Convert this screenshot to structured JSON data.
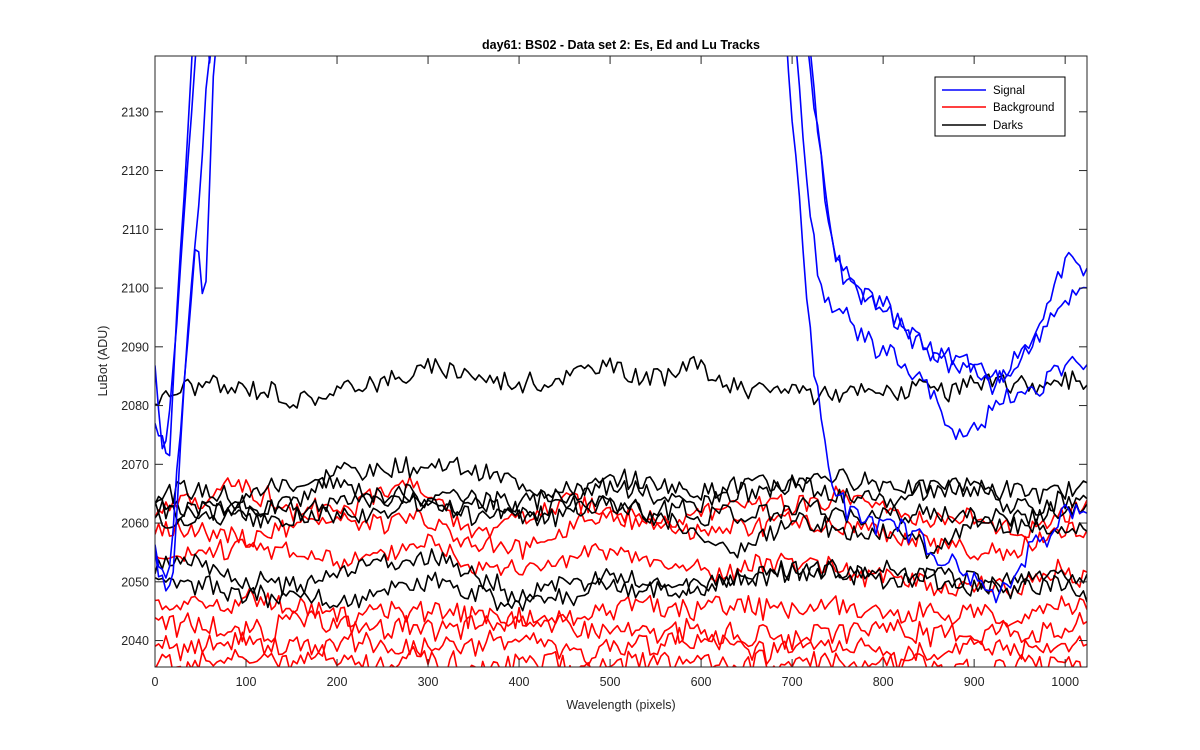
{
  "chart_data": {
    "type": "line",
    "title": "day61: BS02 - Data set 2: Es, Ed and Lu Tracks",
    "xlabel": "Wavelength (pixels)",
    "ylabel": "LuBot (ADU)",
    "xlim": [
      0,
      1024
    ],
    "ylim": [
      2035.5,
      2139.5
    ],
    "xticks": [
      0,
      100,
      200,
      300,
      400,
      500,
      600,
      700,
      800,
      900,
      1000
    ],
    "yticks": [
      2040,
      2050,
      2060,
      2070,
      2080,
      2090,
      2100,
      2110,
      2120,
      2130
    ],
    "grid": false,
    "legend_position": "top-right",
    "legend": [
      {
        "label": "Signal",
        "color": "#0000ff"
      },
      {
        "label": "Background",
        "color": "#ff0000"
      },
      {
        "label": "Darks",
        "color": "#000000"
      }
    ],
    "sampling_step_pixels": 4,
    "series": [
      {
        "group": "Signal",
        "color": "#0000ff",
        "seed": 11,
        "noise": 1.6,
        "knots": [
          [
            0,
            2087
          ],
          [
            10,
            2070
          ],
          [
            20,
            2085
          ],
          [
            35,
            2120
          ],
          [
            50,
            2150
          ],
          [
            60,
            2140
          ],
          [
            70,
            2150
          ],
          [
            710,
            2150
          ],
          [
            720,
            2140
          ],
          [
            740,
            2110
          ],
          [
            760,
            2100
          ],
          [
            800,
            2096
          ],
          [
            850,
            2090
          ],
          [
            880,
            2087
          ],
          [
            920,
            2084
          ],
          [
            950,
            2088
          ],
          [
            980,
            2094
          ],
          [
            1000,
            2097
          ],
          [
            1024,
            2099
          ]
        ]
      },
      {
        "group": "Signal",
        "color": "#0000ff",
        "seed": 12,
        "noise": 1.6,
        "knots": [
          [
            0,
            2078
          ],
          [
            15,
            2070
          ],
          [
            30,
            2110
          ],
          [
            45,
            2150
          ],
          [
            60,
            2150
          ],
          [
            710,
            2150
          ],
          [
            725,
            2130
          ],
          [
            745,
            2105
          ],
          [
            780,
            2098
          ],
          [
            830,
            2092
          ],
          [
            880,
            2088
          ],
          [
            930,
            2085
          ],
          [
            960,
            2090
          ],
          [
            990,
            2100
          ],
          [
            1000,
            2104
          ],
          [
            1024,
            2102
          ]
        ]
      },
      {
        "group": "Signal",
        "color": "#0000ff",
        "seed": 13,
        "noise": 1.6,
        "knots": [
          [
            0,
            2055
          ],
          [
            15,
            2050
          ],
          [
            30,
            2080
          ],
          [
            45,
            2110
          ],
          [
            55,
            2095
          ],
          [
            65,
            2140
          ],
          [
            75,
            2150
          ],
          [
            700,
            2150
          ],
          [
            712,
            2125
          ],
          [
            730,
            2100
          ],
          [
            760,
            2095
          ],
          [
            800,
            2090
          ],
          [
            850,
            2082
          ],
          [
            880,
            2075
          ],
          [
            910,
            2076
          ],
          [
            940,
            2080
          ],
          [
            970,
            2083
          ],
          [
            1000,
            2085
          ],
          [
            1024,
            2088
          ]
        ]
      },
      {
        "group": "Signal",
        "color": "#0000ff",
        "seed": 14,
        "noise": 1.8,
        "knots": [
          [
            0,
            2055
          ],
          [
            10,
            2048
          ],
          [
            20,
            2050
          ],
          [
            35,
            2090
          ],
          [
            50,
            2120
          ],
          [
            65,
            2150
          ],
          [
            690,
            2150
          ],
          [
            700,
            2130
          ],
          [
            710,
            2110
          ],
          [
            725,
            2085
          ],
          [
            740,
            2070
          ],
          [
            760,
            2062
          ],
          [
            800,
            2060
          ],
          [
            850,
            2056
          ],
          [
            890,
            2050
          ],
          [
            930,
            2047
          ],
          [
            960,
            2055
          ],
          [
            1000,
            2062
          ],
          [
            1024,
            2060
          ]
        ]
      },
      {
        "group": "Background",
        "color": "#ff0000",
        "seed": 21,
        "noise": 1.6,
        "knots": [
          [
            0,
            2062
          ],
          [
            100,
            2066
          ],
          [
            200,
            2062
          ],
          [
            280,
            2068
          ],
          [
            350,
            2058
          ],
          [
            450,
            2064
          ],
          [
            550,
            2060
          ],
          [
            650,
            2063
          ],
          [
            750,
            2064
          ],
          [
            850,
            2061
          ],
          [
            950,
            2059
          ],
          [
            1024,
            2062
          ]
        ]
      },
      {
        "group": "Background",
        "color": "#ff0000",
        "seed": 22,
        "noise": 1.6,
        "knots": [
          [
            0,
            2060
          ],
          [
            100,
            2058
          ],
          [
            200,
            2061
          ],
          [
            300,
            2060
          ],
          [
            400,
            2055
          ],
          [
            500,
            2062
          ],
          [
            600,
            2058
          ],
          [
            700,
            2060
          ],
          [
            800,
            2058
          ],
          [
            900,
            2055
          ],
          [
            1000,
            2057
          ],
          [
            1024,
            2058
          ]
        ]
      },
      {
        "group": "Background",
        "color": "#ff0000",
        "seed": 23,
        "noise": 1.6,
        "knots": [
          [
            0,
            2053
          ],
          [
            100,
            2056
          ],
          [
            200,
            2053
          ],
          [
            300,
            2057
          ],
          [
            400,
            2052
          ],
          [
            500,
            2055
          ],
          [
            600,
            2052
          ],
          [
            700,
            2054
          ],
          [
            800,
            2051
          ],
          [
            900,
            2049
          ],
          [
            1000,
            2052
          ],
          [
            1024,
            2051
          ]
        ]
      },
      {
        "group": "Background",
        "color": "#ff0000",
        "seed": 24,
        "noise": 1.8,
        "knots": [
          [
            0,
            2046
          ],
          [
            100,
            2047
          ],
          [
            200,
            2044
          ],
          [
            300,
            2046
          ],
          [
            400,
            2043
          ],
          [
            500,
            2045
          ],
          [
            600,
            2045
          ],
          [
            700,
            2046
          ],
          [
            800,
            2045
          ],
          [
            900,
            2044
          ],
          [
            1000,
            2045
          ],
          [
            1024,
            2046
          ]
        ]
      },
      {
        "group": "Background",
        "color": "#ff0000",
        "seed": 25,
        "noise": 1.8,
        "knots": [
          [
            0,
            2044
          ],
          [
            100,
            2042
          ],
          [
            200,
            2044
          ],
          [
            300,
            2042
          ],
          [
            400,
            2043
          ],
          [
            500,
            2041
          ],
          [
            600,
            2043
          ],
          [
            700,
            2040
          ],
          [
            800,
            2042
          ],
          [
            900,
            2040
          ],
          [
            1000,
            2041
          ],
          [
            1024,
            2042
          ]
        ]
      },
      {
        "group": "Background",
        "color": "#ff0000",
        "seed": 26,
        "noise": 1.7,
        "knots": [
          [
            0,
            2040
          ],
          [
            100,
            2039
          ],
          [
            200,
            2040
          ],
          [
            300,
            2039
          ],
          [
            400,
            2040
          ],
          [
            500,
            2039
          ],
          [
            600,
            2040
          ],
          [
            700,
            2039
          ],
          [
            800,
            2038
          ],
          [
            900,
            2039
          ],
          [
            1000,
            2039
          ],
          [
            1024,
            2040
          ]
        ]
      },
      {
        "group": "Background",
        "color": "#ff0000",
        "seed": 27,
        "noise": 1.7,
        "knots": [
          [
            0,
            2037
          ],
          [
            100,
            2036
          ],
          [
            200,
            2037
          ],
          [
            300,
            2036
          ],
          [
            400,
            2036
          ],
          [
            500,
            2036
          ],
          [
            600,
            2037
          ],
          [
            700,
            2036
          ],
          [
            800,
            2036
          ],
          [
            900,
            2035
          ],
          [
            1000,
            2036
          ],
          [
            1024,
            2036
          ]
        ]
      },
      {
        "group": "Darks",
        "color": "#000000",
        "seed": 31,
        "noise": 1.6,
        "knots": [
          [
            0,
            2081
          ],
          [
            50,
            2084
          ],
          [
            100,
            2082
          ],
          [
            180,
            2080
          ],
          [
            220,
            2084
          ],
          [
            300,
            2086
          ],
          [
            400,
            2084
          ],
          [
            490,
            2086
          ],
          [
            560,
            2085
          ],
          [
            580,
            2088
          ],
          [
            650,
            2082
          ],
          [
            700,
            2083
          ],
          [
            760,
            2082
          ],
          [
            820,
            2083
          ],
          [
            860,
            2082
          ],
          [
            920,
            2083
          ],
          [
            960,
            2084
          ],
          [
            1024,
            2083
          ]
        ]
      },
      {
        "group": "Darks",
        "color": "#000000",
        "seed": 32,
        "noise": 1.6,
        "knots": [
          [
            0,
            2065
          ],
          [
            100,
            2066
          ],
          [
            180,
            2068
          ],
          [
            300,
            2071
          ],
          [
            400,
            2066
          ],
          [
            500,
            2067
          ],
          [
            600,
            2066
          ],
          [
            700,
            2067
          ],
          [
            800,
            2067
          ],
          [
            900,
            2066
          ],
          [
            1000,
            2065
          ],
          [
            1024,
            2066
          ]
        ]
      },
      {
        "group": "Darks",
        "color": "#000000",
        "seed": 33,
        "noise": 1.6,
        "knots": [
          [
            0,
            2063
          ],
          [
            100,
            2062
          ],
          [
            200,
            2066
          ],
          [
            300,
            2065
          ],
          [
            400,
            2064
          ],
          [
            500,
            2066
          ],
          [
            600,
            2063
          ],
          [
            700,
            2066
          ],
          [
            800,
            2064
          ],
          [
            880,
            2066
          ],
          [
            960,
            2062
          ],
          [
            1024,
            2064
          ]
        ]
      },
      {
        "group": "Darks",
        "color": "#000000",
        "seed": 34,
        "noise": 1.6,
        "knots": [
          [
            0,
            2061
          ],
          [
            100,
            2063
          ],
          [
            200,
            2061
          ],
          [
            300,
            2063
          ],
          [
            400,
            2062
          ],
          [
            500,
            2064
          ],
          [
            600,
            2061
          ],
          [
            700,
            2063
          ],
          [
            800,
            2062
          ],
          [
            900,
            2061
          ],
          [
            1000,
            2063
          ],
          [
            1024,
            2062
          ]
        ]
      },
      {
        "group": "Darks",
        "color": "#000000",
        "seed": 35,
        "noise": 1.6,
        "knots": [
          [
            0,
            2063
          ],
          [
            100,
            2061
          ],
          [
            200,
            2063
          ],
          [
            300,
            2064
          ],
          [
            400,
            2062
          ],
          [
            500,
            2063
          ],
          [
            600,
            2058
          ],
          [
            650,
            2055
          ],
          [
            700,
            2060
          ],
          [
            800,
            2058
          ],
          [
            850,
            2056
          ],
          [
            920,
            2060
          ],
          [
            1000,
            2060
          ],
          [
            1024,
            2059
          ]
        ]
      },
      {
        "group": "Darks",
        "color": "#000000",
        "seed": 36,
        "noise": 1.6,
        "knots": [
          [
            0,
            2052
          ],
          [
            40,
            2054
          ],
          [
            100,
            2049
          ],
          [
            200,
            2050
          ],
          [
            300,
            2054
          ],
          [
            400,
            2048
          ],
          [
            500,
            2052
          ],
          [
            600,
            2049
          ],
          [
            700,
            2052
          ],
          [
            800,
            2051
          ],
          [
            900,
            2050
          ],
          [
            1000,
            2052
          ],
          [
            1024,
            2051
          ]
        ]
      },
      {
        "group": "Darks",
        "color": "#000000",
        "seed": 37,
        "noise": 1.6,
        "knots": [
          [
            0,
            2049
          ],
          [
            100,
            2048
          ],
          [
            200,
            2047
          ],
          [
            300,
            2050
          ],
          [
            400,
            2047
          ],
          [
            500,
            2049
          ],
          [
            600,
            2050
          ],
          [
            700,
            2051
          ],
          [
            800,
            2052
          ],
          [
            900,
            2049
          ],
          [
            1000,
            2050
          ],
          [
            1024,
            2048
          ]
        ]
      }
    ]
  }
}
